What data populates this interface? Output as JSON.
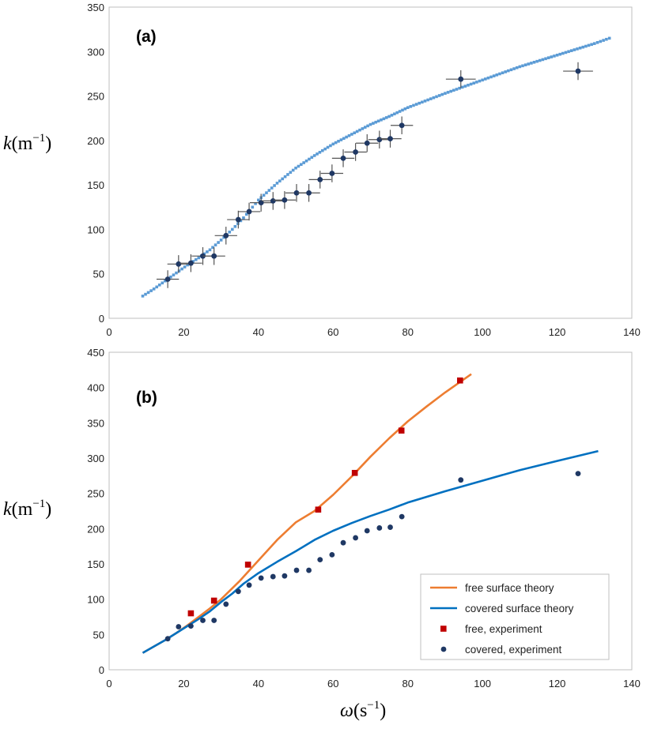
{
  "chart_data": [
    {
      "id": "a",
      "type": "scatter",
      "panel_label": "(a)",
      "ylabel": "k(m^-1)",
      "ylabel_parts": {
        "symbol": "k",
        "open": "(",
        "unit": "m",
        "exp": "−1",
        "close": ")"
      },
      "xlim": [
        0,
        140
      ],
      "ylim": [
        0,
        350
      ],
      "xticks": [
        0,
        20,
        40,
        60,
        80,
        100,
        120,
        140
      ],
      "yticks": [
        0,
        50,
        100,
        150,
        200,
        250,
        300,
        350
      ],
      "series": [
        {
          "name": "covered surface theory (dotted)",
          "color": "#5B9BD5",
          "style": "dotted-curve",
          "points": [
            [
              9,
              25
            ],
            [
              12,
              33
            ],
            [
              15,
              42
            ],
            [
              18,
              51
            ],
            [
              21,
              60
            ],
            [
              24,
              68
            ],
            [
              27,
              77
            ],
            [
              30,
              88
            ],
            [
              33,
              100
            ],
            [
              36,
              113
            ],
            [
              40,
              133
            ],
            [
              45,
              152
            ],
            [
              50,
              169
            ],
            [
              55,
              183
            ],
            [
              60,
              196
            ],
            [
              65,
              207
            ],
            [
              70,
              218
            ],
            [
              75,
              227
            ],
            [
              80,
              237
            ],
            [
              90,
              253
            ],
            [
              100,
              268
            ],
            [
              110,
              283
            ],
            [
              120,
              296
            ],
            [
              130,
              309
            ],
            [
              134,
              315
            ]
          ]
        },
        {
          "name": "covered, experiment",
          "color": "#1F3864",
          "style": "markers-errorbars",
          "x": [
            15.7,
            18.6,
            21.9,
            25.1,
            28.1,
            31.3,
            34.6,
            37.5,
            40.7,
            43.9,
            47.0,
            50.2,
            53.5,
            56.5,
            59.7,
            62.7,
            66.0,
            69.1,
            72.4,
            75.3,
            78.4,
            94.2,
            125.6
          ],
          "y": [
            44,
            61,
            62,
            70,
            70,
            93,
            111,
            120,
            130,
            132,
            133,
            141,
            141,
            156,
            163,
            180,
            187,
            197,
            201,
            202,
            217,
            269,
            278
          ],
          "xerr": [
            3,
            3,
            3,
            3,
            3,
            3,
            3,
            3,
            3,
            3,
            3,
            3,
            3,
            3,
            3,
            3,
            3,
            3,
            3,
            3,
            3,
            4,
            4
          ],
          "yerr": [
            10,
            10,
            10,
            10,
            10,
            10,
            10,
            10,
            10,
            10,
            10,
            10,
            10,
            10,
            10,
            10,
            10,
            10,
            10,
            10,
            10,
            10,
            10
          ]
        }
      ]
    },
    {
      "id": "b",
      "type": "line",
      "panel_label": "(b)",
      "xlabel": "ω(s^-1)",
      "xlabel_parts": {
        "symbol": "ω",
        "open": "(",
        "unit": "s",
        "exp": "−1",
        "close": ")"
      },
      "ylabel": "k(m^-1)",
      "ylabel_parts": {
        "symbol": "k",
        "open": "(",
        "unit": "m",
        "exp": "−1",
        "close": ")"
      },
      "xlim": [
        0,
        140
      ],
      "ylim": [
        0,
        450
      ],
      "xticks": [
        0,
        20,
        40,
        60,
        80,
        100,
        120,
        140
      ],
      "yticks": [
        0,
        50,
        100,
        150,
        200,
        250,
        300,
        350,
        400,
        450
      ],
      "legend_position": "bottom-right",
      "series": [
        {
          "name": "free surface theory",
          "color": "#ED7D31",
          "kind": "line",
          "points": [
            [
              9,
              24
            ],
            [
              12,
              33
            ],
            [
              15,
              42
            ],
            [
              18,
              52
            ],
            [
              21,
              63
            ],
            [
              24,
              75
            ],
            [
              27,
              87
            ],
            [
              30,
              100
            ],
            [
              35,
              126
            ],
            [
              40,
              155
            ],
            [
              45,
              184
            ],
            [
              50,
              209
            ],
            [
              55,
              225
            ],
            [
              60,
              248
            ],
            [
              65,
              274
            ],
            [
              70,
              302
            ],
            [
              75,
              328
            ],
            [
              80,
              352
            ],
            [
              85,
              373
            ],
            [
              90,
              393
            ],
            [
              97,
              419
            ]
          ]
        },
        {
          "name": "covered surface theory",
          "color": "#0070C0",
          "kind": "line",
          "points": [
            [
              9,
              24
            ],
            [
              12,
              33
            ],
            [
              15,
              42
            ],
            [
              18,
              52
            ],
            [
              21,
              62
            ],
            [
              24,
              72
            ],
            [
              27,
              83
            ],
            [
              30,
              96
            ],
            [
              33,
              108
            ],
            [
              36,
              122
            ],
            [
              40,
              137
            ],
            [
              45,
              153
            ],
            [
              50,
              168
            ],
            [
              55,
              184
            ],
            [
              60,
              197
            ],
            [
              65,
              208
            ],
            [
              70,
              218
            ],
            [
              75,
              227
            ],
            [
              80,
              237
            ],
            [
              90,
              253
            ],
            [
              100,
              268
            ],
            [
              110,
              283
            ],
            [
              120,
              296
            ],
            [
              131,
              310
            ]
          ]
        },
        {
          "name": "free, experiment",
          "color": "#C00000",
          "kind": "square",
          "x": [
            21.9,
            28.1,
            37.2,
            56.0,
            65.8,
            78.3,
            94.0
          ],
          "y": [
            80,
            98,
            149,
            227,
            279,
            339,
            410
          ]
        },
        {
          "name": "covered, experiment",
          "color": "#1F3864",
          "kind": "dot",
          "x": [
            15.7,
            18.6,
            21.9,
            25.1,
            28.1,
            31.3,
            34.6,
            37.5,
            40.7,
            43.9,
            47.0,
            50.2,
            53.5,
            56.5,
            59.7,
            62.7,
            66.0,
            69.1,
            72.4,
            75.3,
            78.4,
            94.2,
            125.6
          ],
          "y": [
            44,
            61,
            62,
            70,
            70,
            93,
            111,
            120,
            130,
            132,
            133,
            141,
            141,
            156,
            163,
            180,
            187,
            197,
            201,
            202,
            217,
            269,
            278
          ]
        }
      ],
      "legend": [
        {
          "label": "free surface theory",
          "kind": "line",
          "color": "#ED7D31"
        },
        {
          "label": "covered surface theory",
          "kind": "line",
          "color": "#0070C0"
        },
        {
          "label": "free, experiment",
          "kind": "square",
          "color": "#C00000"
        },
        {
          "label": "covered, experiment",
          "kind": "dot",
          "color": "#1F3864"
        }
      ]
    }
  ]
}
